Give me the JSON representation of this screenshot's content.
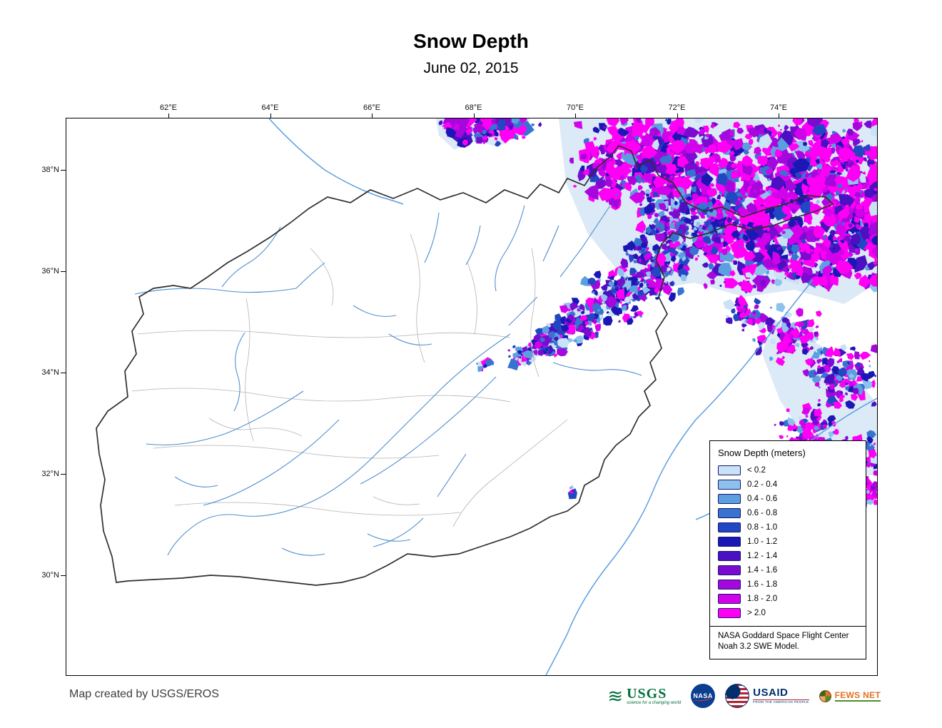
{
  "title": "Snow Depth",
  "subtitle": "June 02, 2015",
  "map": {
    "top_axis_labels": [
      "62°E",
      "64°E",
      "66°E",
      "68°E",
      "70°E",
      "72°E",
      "74°E"
    ],
    "left_axis_labels": [
      "38°N",
      "36°N",
      "34°N",
      "32°N",
      "30°N"
    ]
  },
  "legend": {
    "title": "Snow Depth (meters)",
    "items": [
      {
        "label": "< 0.2",
        "color": "#c9e2f6"
      },
      {
        "label": "0.2 - 0.4",
        "color": "#8ec2ee"
      },
      {
        "label": "0.4 - 0.6",
        "color": "#5b9fe0"
      },
      {
        "label": "0.6 - 0.8",
        "color": "#3674cf"
      },
      {
        "label": "0.8 - 1.0",
        "color": "#2247c2"
      },
      {
        "label": "1.0 - 1.2",
        "color": "#1a17b5"
      },
      {
        "label": "1.2 - 1.4",
        "color": "#4a10c2"
      },
      {
        "label": "1.4 - 1.6",
        "color": "#7b0bd0"
      },
      {
        "label": "1.6 - 1.8",
        "color": "#a607dd"
      },
      {
        "label": "1.8 - 2.0",
        "color": "#d203ea"
      },
      {
        "label": "> 2.0",
        "color": "#ff00f4"
      }
    ],
    "source_line1": "NASA Goddard Space Flight Center",
    "source_line2": "Noah 3.2 SWE Model."
  },
  "footer": {
    "credit": "Map created by USGS/EROS",
    "logos": {
      "usgs": {
        "name": "USGS",
        "tagline": "science for a changing world"
      },
      "nasa": {
        "name": "NASA"
      },
      "usaid": {
        "name": "USAID",
        "tagline": "FROM THE AMERICAN PEOPLE"
      },
      "fewsnet": {
        "name": "FEWS NET"
      }
    }
  },
  "colors": {
    "river": "#4f8fd0",
    "river_major": "#5b9fe0",
    "watershed": "#b3b3b3",
    "country_border": "#2f2f2f",
    "snow_wash": "#dce9f7"
  }
}
